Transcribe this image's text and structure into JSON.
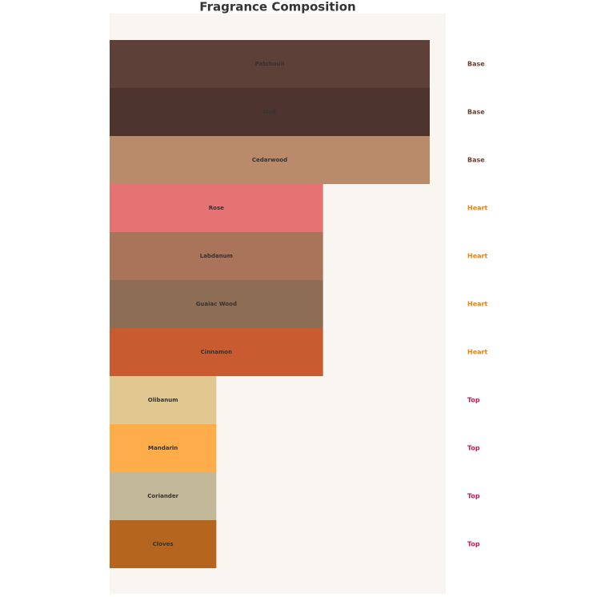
{
  "chart_data": {
    "type": "bar",
    "orientation": "horizontal",
    "title": "Fragrance Composition",
    "categories": [
      "Patchouli",
      "Oud",
      "Cedarwood",
      "Rose",
      "Labdanum",
      "Guaiac Wood",
      "Cinnamon",
      "Olibanum",
      "Mandarin",
      "Coriander",
      "Cloves"
    ],
    "values": [
      3,
      3,
      3,
      2,
      2,
      2,
      2,
      1,
      1,
      1,
      1
    ],
    "colors": [
      "#5d4037",
      "#4e342e",
      "#b98b6b",
      "#e57373",
      "#a9745a",
      "#8d6e55",
      "#c95b30",
      "#e0c890",
      "#ffad4a",
      "#c4b89a",
      "#b5651d"
    ],
    "note_levels": [
      "Base",
      "Base",
      "Base",
      "Heart",
      "Heart",
      "Heart",
      "Heart",
      "Top",
      "Top",
      "Top",
      "Top"
    ],
    "note_level_colors": {
      "Base": "#6b3e2e",
      "Heart": "#e8820c",
      "Top": "#c2185b"
    },
    "xlim": [
      0,
      3.15
    ],
    "background": "#f9f5f0"
  }
}
